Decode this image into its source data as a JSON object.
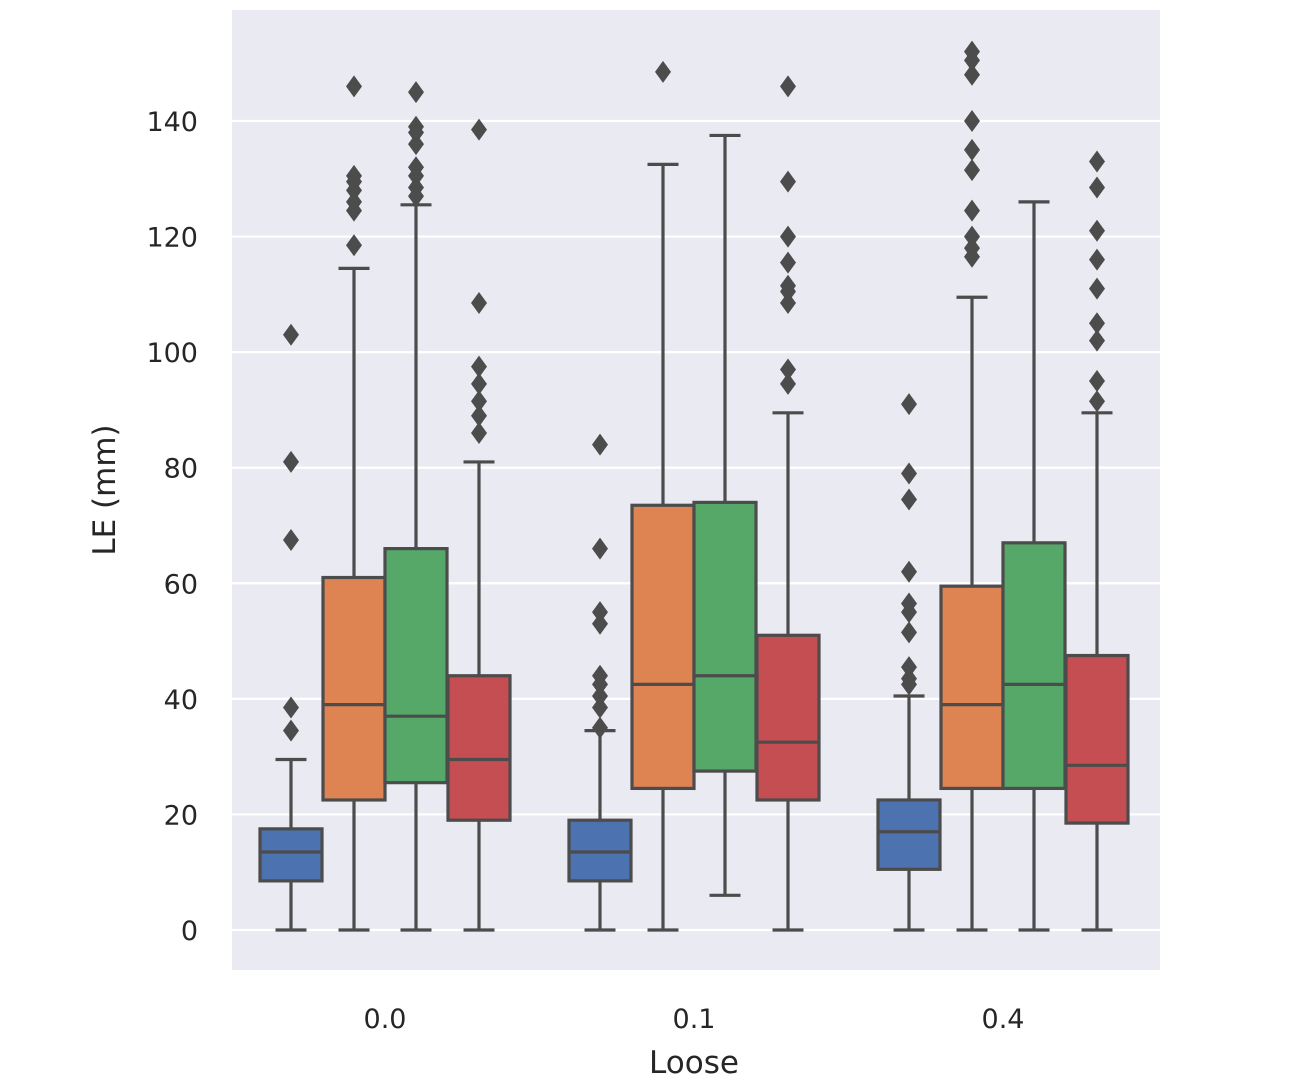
{
  "chart_data": {
    "type": "box",
    "xlabel": "Loose",
    "ylabel": "LE (mm)",
    "ylim": [
      -7,
      160
    ],
    "yticks": [
      0,
      20,
      40,
      60,
      80,
      100,
      120,
      140
    ],
    "grid": true,
    "legend": "none",
    "background_color": "#eaeaf2",
    "line_color": "#4c4c4c",
    "hue_colors": [
      "#4c72b0",
      "#dd8452",
      "#55a868",
      "#c44e52"
    ],
    "categories": [
      "0.0",
      "0.1",
      "0.4"
    ],
    "groups": [
      {
        "category": "0.0",
        "boxes": [
          {
            "whisker_low": 0,
            "q1": 8.5,
            "median": 13.5,
            "q3": 17.5,
            "whisker_high": 29.5,
            "outliers": [
              34.5,
              38.5,
              67.5,
              81,
              103
            ]
          },
          {
            "whisker_low": 0,
            "q1": 22.5,
            "median": 39,
            "q3": 61,
            "whisker_high": 114.5,
            "outliers": [
              118.5,
              124.5,
              126,
              128,
              129.5,
              130.5,
              146
            ]
          },
          {
            "whisker_low": 0,
            "q1": 25.5,
            "median": 37,
            "q3": 66,
            "whisker_high": 125.5,
            "outliers": [
              127,
              128.5,
              130.5,
              132,
              136,
              138,
              139,
              145
            ]
          },
          {
            "whisker_low": 0,
            "q1": 19,
            "median": 29.5,
            "q3": 44,
            "whisker_high": 81,
            "outliers": [
              86,
              89,
              91.5,
              94.5,
              97.5,
              108.5,
              138.5
            ]
          }
        ]
      },
      {
        "category": "0.1",
        "boxes": [
          {
            "whisker_low": 0,
            "q1": 8.5,
            "median": 13.5,
            "q3": 19,
            "whisker_high": 34.5,
            "outliers": [
              35,
              38.5,
              40.5,
              42.5,
              44,
              53,
              55,
              66,
              84
            ]
          },
          {
            "whisker_low": 0,
            "q1": 24.5,
            "median": 42.5,
            "q3": 73.5,
            "whisker_high": 132.5,
            "outliers": [
              148.5
            ]
          },
          {
            "whisker_low": 6,
            "q1": 27.5,
            "median": 44,
            "q3": 74,
            "whisker_high": 137.5,
            "outliers": []
          },
          {
            "whisker_low": 0,
            "q1": 22.5,
            "median": 32.5,
            "q3": 51,
            "whisker_high": 89.5,
            "outliers": [
              94.5,
              97,
              108.5,
              110.5,
              111.5,
              115.5,
              120,
              129.5,
              146
            ]
          }
        ]
      },
      {
        "category": "0.4",
        "boxes": [
          {
            "whisker_low": 0,
            "q1": 10.5,
            "median": 17,
            "q3": 22.5,
            "whisker_high": 40.5,
            "outliers": [
              42.5,
              43.5,
              45.5,
              51.5,
              55,
              56.5,
              62,
              74.5,
              79,
              91
            ]
          },
          {
            "whisker_low": 0,
            "q1": 24.5,
            "median": 39,
            "q3": 59.5,
            "whisker_high": 109.5,
            "outliers": [
              116.5,
              118,
              120,
              124.5,
              131.5,
              135,
              140,
              148,
              150.5,
              152
            ]
          },
          {
            "whisker_low": 0,
            "q1": 24.5,
            "median": 42.5,
            "q3": 67,
            "whisker_high": 126,
            "outliers": []
          },
          {
            "whisker_low": 0,
            "q1": 18.5,
            "median": 28.5,
            "q3": 47.5,
            "whisker_high": 89.5,
            "outliers": [
              91.5,
              95,
              102,
              105,
              111,
              116,
              121,
              128.5,
              133
            ]
          }
        ]
      }
    ]
  }
}
